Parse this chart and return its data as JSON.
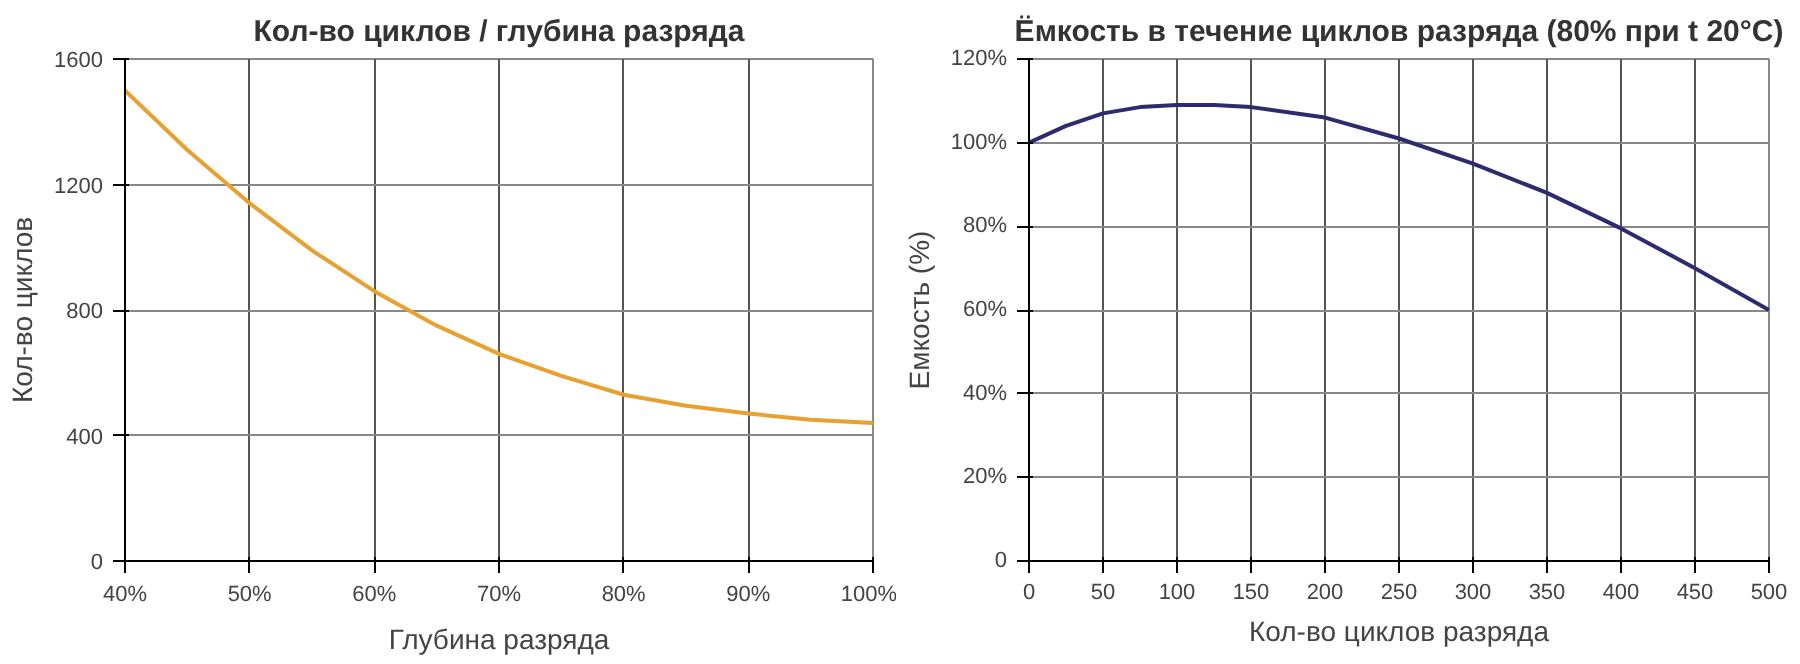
{
  "chart_data": [
    {
      "type": "line",
      "title": "Кол-во циклов / глубина разряда",
      "xlabel": "Глубина разряда",
      "ylabel": "Кол-во циклов",
      "x": [
        40,
        45,
        50,
        55,
        60,
        65,
        70,
        75,
        80,
        85,
        90,
        95,
        100
      ],
      "series": [
        {
          "color": "#e8a030",
          "values": [
            1500,
            1310,
            1140,
            990,
            860,
            750,
            660,
            590,
            530,
            495,
            470,
            450,
            440
          ]
        }
      ],
      "xlim": [
        40,
        100
      ],
      "ylim": [
        0,
        1600
      ],
      "xticks": [
        {
          "value": 40,
          "label": "40%"
        },
        {
          "value": 50,
          "label": "50%"
        },
        {
          "value": 60,
          "label": "60%"
        },
        {
          "value": 70,
          "label": "70%"
        },
        {
          "value": 80,
          "label": "80%"
        },
        {
          "value": 90,
          "label": "90%"
        },
        {
          "value": 100,
          "label": "100%"
        }
      ],
      "yticks": [
        0,
        400,
        800,
        1200,
        1600
      ],
      "grid": true,
      "marker": "none",
      "line_style": "solid"
    },
    {
      "type": "line",
      "title": "Ёмкость в течение циклов разряда (80% при t 20°C)",
      "xlabel": "Кол-во циклов разряда",
      "ylabel": "Емкость (%)",
      "x": [
        0,
        25,
        50,
        75,
        100,
        125,
        150,
        200,
        250,
        300,
        350,
        400,
        450,
        500
      ],
      "series": [
        {
          "color": "#2e2a6e",
          "values": [
            100,
            104,
            107,
            108.5,
            109,
            109,
            108.5,
            106,
            101,
            95,
            88,
            79.5,
            70,
            60
          ]
        }
      ],
      "xlim": [
        0,
        500
      ],
      "ylim": [
        0,
        120
      ],
      "xticks": [
        0,
        50,
        100,
        150,
        200,
        250,
        300,
        350,
        400,
        450,
        500
      ],
      "yticks": [
        0,
        {
          "value": 20,
          "label": "20%"
        },
        {
          "value": 40,
          "label": "40%"
        },
        {
          "value": 60,
          "label": "60%"
        },
        {
          "value": 80,
          "label": "80%"
        },
        {
          "value": 100,
          "label": "100%"
        },
        {
          "value": 120,
          "label": "120%"
        }
      ],
      "grid": true,
      "marker": "none",
      "line_style": "solid"
    }
  ]
}
